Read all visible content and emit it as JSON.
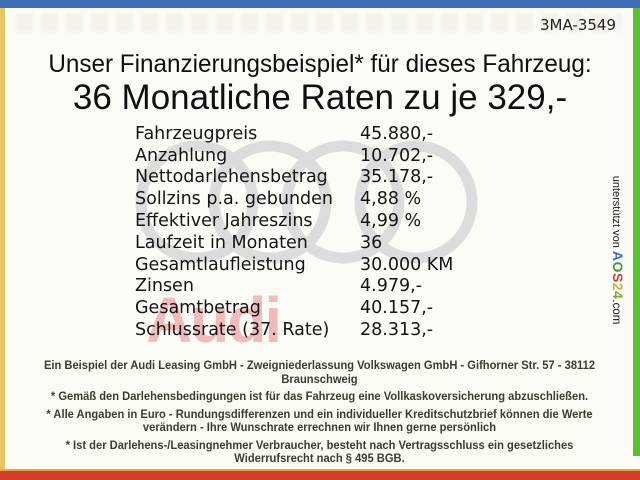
{
  "page": {
    "ref_number": "3MA-3549",
    "title_line1": "Unser Finanzierungsbeispiel* für dieses Fahrzeug:",
    "title_line2": "36 Monatliche Raten zu je 329,-"
  },
  "financing_table": {
    "rows": [
      {
        "label": "Fahrzeugpreis",
        "value": "45.880,-"
      },
      {
        "label": "Anzahlung",
        "value": "10.702,-"
      },
      {
        "label": "Nettodarlehensbetrag",
        "value": "35.178,-"
      },
      {
        "label": "Sollzins p.a. gebunden",
        "value": "4,88 %"
      },
      {
        "label": "Effektiver Jahreszins",
        "value": "4,99 %"
      },
      {
        "label": "Laufzeit in Monaten",
        "value": "36"
      },
      {
        "label": "Gesamtlaufleistung",
        "value": "30.000 KM"
      },
      {
        "label": "Zinsen",
        "value": "4.979,-"
      },
      {
        "label": "Gesamtbetrag",
        "value": "40.157,-"
      },
      {
        "label": "Schlussrate (37. Rate)",
        "value": "28.313,-"
      }
    ]
  },
  "watermarks": {
    "audi_word": "Audi"
  },
  "support": {
    "prefix": "unterstützt von ",
    "brand_letters": [
      {
        "ch": "A",
        "color": "#3d6cc4"
      },
      {
        "ch": "O",
        "color": "#3f9b3a"
      },
      {
        "ch": "S",
        "color": "#cf4137"
      },
      {
        "ch": "2",
        "color": "#c9b62e"
      },
      {
        "ch": "4",
        "color": "#7fa82a"
      }
    ],
    "suffix": ".com"
  },
  "footer": {
    "lines": [
      "Ein Beispiel der Audi Leasing GmbH - Zweigniederlassung Volkswagen GmbH - Gifhorner Str. 57 - 38112 Braunschweig",
      "* Gemäß den Darlehensbedingungen ist für das Fahrzeug eine Vollkaskoversicherung abzuschließen.",
      "* Alle Angaben in Euro - Rundungsdifferenzen und ein individueller Kreditschutzbrief können die Werte verändern - Ihre Wunschrate errechnen wir Ihnen gerne persönlich",
      "* Ist der Darlehens-/Leasingnehmer Verbraucher, besteht nach Vertragsschluss ein gesetzliches Widerrufsrecht nach § 495 BGB."
    ]
  },
  "colors": {
    "topbar": "#3e6db5",
    "leftbar": "#eac463",
    "rightbar": "#56c32f",
    "bottombar": "#d63a2a",
    "bottombar-accent": "#e5a83c",
    "rings": "#dcdcdc",
    "audi-wm": "#efb0b0"
  }
}
